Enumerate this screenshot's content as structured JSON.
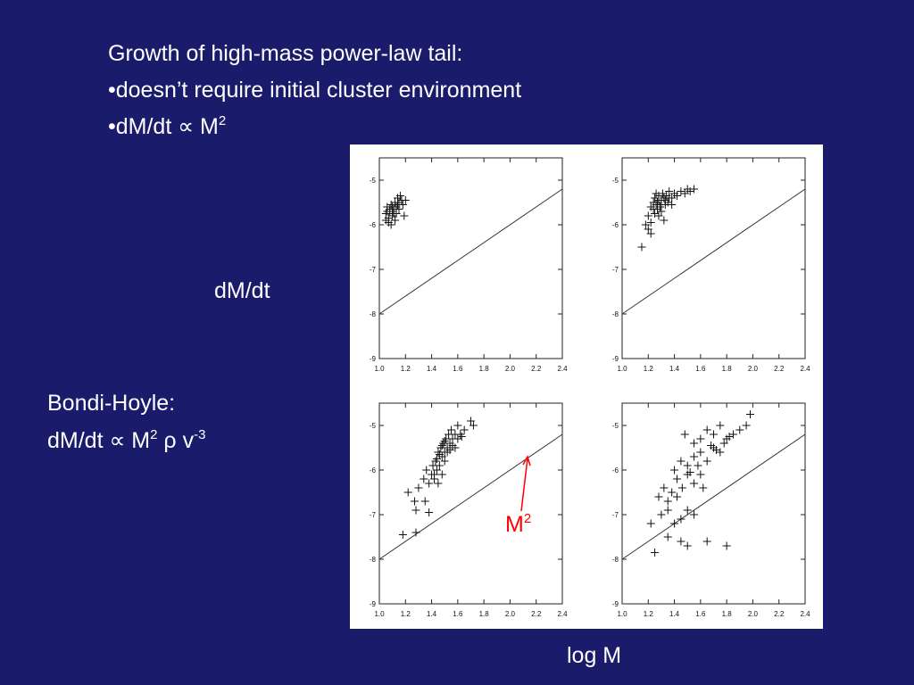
{
  "slide": {
    "heading": "Growth of high-mass power-law tail:",
    "bullets": [
      "•doesn’t require initial cluster environment",
      {
        "text": "•dM/dt ∝ M",
        "sup": "2"
      }
    ],
    "y_axis_label": "dM/dt",
    "x_axis_label": "log M",
    "bondi_hoyle": {
      "title": "Bondi-Hoyle:",
      "formula_parts": [
        "dM/dt ∝ M",
        "2",
        " ρ v",
        "-3"
      ]
    },
    "annotation": {
      "label_base": "M",
      "label_sup": "2",
      "color": "#ff0000"
    }
  },
  "colors": {
    "background": "#1b1b6b",
    "text": "#ffffff",
    "figure_bg": "#ffffff",
    "marker": "#111111"
  },
  "chart_data": [
    {
      "type": "scatter",
      "panel": "top-left",
      "xlim": [
        1.0,
        2.4
      ],
      "ylim": [
        -9,
        -4.5
      ],
      "x_ticks": [
        "1.0",
        "1.2",
        "1.4",
        "1.6",
        "1.8",
        "2.0",
        "2.2",
        "2.4"
      ],
      "y_ticks": [
        "-5",
        "-6",
        "-7",
        "-8",
        "-9"
      ],
      "reference_line": {
        "label": "M²",
        "points": [
          [
            1.0,
            -8.0
          ],
          [
            2.4,
            -5.2
          ]
        ]
      },
      "points": [
        [
          1.05,
          -5.75
        ],
        [
          1.06,
          -5.6
        ],
        [
          1.07,
          -5.85
        ],
        [
          1.08,
          -5.7
        ],
        [
          1.09,
          -5.55
        ],
        [
          1.1,
          -5.8
        ],
        [
          1.11,
          -5.65
        ],
        [
          1.12,
          -5.5
        ],
        [
          1.13,
          -5.6
        ],
        [
          1.14,
          -5.4
        ],
        [
          1.15,
          -5.5
        ],
        [
          1.16,
          -5.35
        ],
        [
          1.17,
          -5.45
        ],
        [
          1.18,
          -5.55
        ],
        [
          1.2,
          -5.45
        ],
        [
          1.07,
          -5.95
        ],
        [
          1.09,
          -6.0
        ],
        [
          1.12,
          -5.9
        ],
        [
          1.06,
          -5.7
        ],
        [
          1.1,
          -5.7
        ],
        [
          1.13,
          -5.75
        ],
        [
          1.19,
          -5.8
        ],
        [
          1.08,
          -5.65
        ],
        [
          1.11,
          -5.75
        ],
        [
          1.15,
          -5.65
        ],
        [
          1.1,
          -5.6
        ],
        [
          1.14,
          -5.55
        ],
        [
          1.05,
          -5.9
        ]
      ]
    },
    {
      "type": "scatter",
      "panel": "top-right",
      "xlim": [
        1.0,
        2.4
      ],
      "ylim": [
        -9,
        -4.5
      ],
      "x_ticks": [
        "1.0",
        "1.2",
        "1.4",
        "1.6",
        "1.8",
        "2.0",
        "2.2",
        "2.4"
      ],
      "y_ticks": [
        "-5",
        "-6",
        "-7",
        "-8",
        "-9"
      ],
      "reference_line": {
        "label": "M²",
        "points": [
          [
            1.0,
            -8.0
          ],
          [
            2.4,
            -5.2
          ]
        ]
      },
      "points": [
        [
          1.15,
          -6.5
        ],
        [
          1.18,
          -6.0
        ],
        [
          1.2,
          -6.1
        ],
        [
          1.22,
          -6.2
        ],
        [
          1.2,
          -5.8
        ],
        [
          1.22,
          -5.6
        ],
        [
          1.24,
          -5.5
        ],
        [
          1.25,
          -5.4
        ],
        [
          1.26,
          -5.3
        ],
        [
          1.27,
          -5.5
        ],
        [
          1.28,
          -5.35
        ],
        [
          1.29,
          -5.6
        ],
        [
          1.3,
          -5.45
        ],
        [
          1.31,
          -5.3
        ],
        [
          1.32,
          -5.4
        ],
        [
          1.33,
          -5.55
        ],
        [
          1.34,
          -5.35
        ],
        [
          1.35,
          -5.5
        ],
        [
          1.36,
          -5.25
        ],
        [
          1.38,
          -5.4
        ],
        [
          1.4,
          -5.3
        ],
        [
          1.42,
          -5.35
        ],
        [
          1.45,
          -5.25
        ],
        [
          1.48,
          -5.3
        ],
        [
          1.5,
          -5.2
        ],
        [
          1.52,
          -5.25
        ],
        [
          1.55,
          -5.2
        ],
        [
          1.25,
          -5.75
        ],
        [
          1.28,
          -5.8
        ],
        [
          1.3,
          -5.7
        ],
        [
          1.32,
          -5.9
        ],
        [
          1.24,
          -5.65
        ],
        [
          1.26,
          -5.55
        ],
        [
          1.28,
          -5.45
        ],
        [
          1.3,
          -5.55
        ],
        [
          1.33,
          -5.45
        ],
        [
          1.36,
          -5.4
        ],
        [
          1.38,
          -5.55
        ],
        [
          1.22,
          -5.95
        ],
        [
          1.27,
          -5.65
        ]
      ]
    },
    {
      "type": "scatter",
      "panel": "bottom-left",
      "xlim": [
        1.0,
        2.4
      ],
      "ylim": [
        -9,
        -4.5
      ],
      "x_ticks": [
        "1.0",
        "1.2",
        "1.4",
        "1.6",
        "1.8",
        "2.0",
        "2.2",
        "2.4"
      ],
      "y_ticks": [
        "-5",
        "-6",
        "-7",
        "-8",
        "-9"
      ],
      "reference_line": {
        "label": "M²",
        "points": [
          [
            1.0,
            -8.0
          ],
          [
            2.4,
            -5.2
          ]
        ]
      },
      "points": [
        [
          1.18,
          -7.45
        ],
        [
          1.28,
          -7.4
        ],
        [
          1.22,
          -6.5
        ],
        [
          1.27,
          -6.7
        ],
        [
          1.28,
          -6.9
        ],
        [
          1.35,
          -6.7
        ],
        [
          1.38,
          -6.95
        ],
        [
          1.3,
          -6.4
        ],
        [
          1.34,
          -6.2
        ],
        [
          1.36,
          -6.0
        ],
        [
          1.38,
          -6.3
        ],
        [
          1.4,
          -6.1
        ],
        [
          1.41,
          -5.9
        ],
        [
          1.42,
          -6.2
        ],
        [
          1.43,
          -5.8
        ],
        [
          1.44,
          -6.0
        ],
        [
          1.45,
          -5.6
        ],
        [
          1.46,
          -5.9
        ],
        [
          1.47,
          -5.5
        ],
        [
          1.48,
          -5.7
        ],
        [
          1.49,
          -5.4
        ],
        [
          1.5,
          -5.6
        ],
        [
          1.51,
          -5.3
        ],
        [
          1.52,
          -5.5
        ],
        [
          1.53,
          -5.2
        ],
        [
          1.54,
          -5.4
        ],
        [
          1.55,
          -5.1
        ],
        [
          1.56,
          -5.3
        ],
        [
          1.58,
          -5.2
        ],
        [
          1.6,
          -5.0
        ],
        [
          1.62,
          -5.2
        ],
        [
          1.65,
          -5.1
        ],
        [
          1.7,
          -4.9
        ],
        [
          1.72,
          -5.0
        ],
        [
          1.45,
          -6.3
        ],
        [
          1.48,
          -6.1
        ],
        [
          1.5,
          -5.8
        ],
        [
          1.52,
          -5.6
        ],
        [
          1.54,
          -5.55
        ],
        [
          1.56,
          -5.45
        ],
        [
          1.58,
          -5.5
        ],
        [
          1.46,
          -5.65
        ],
        [
          1.48,
          -5.45
        ],
        [
          1.5,
          -5.35
        ],
        [
          1.42,
          -6.1
        ],
        [
          1.44,
          -5.75
        ],
        [
          1.6,
          -5.3
        ],
        [
          1.63,
          -5.25
        ]
      ]
    },
    {
      "type": "scatter",
      "panel": "bottom-right",
      "xlim": [
        1.0,
        2.4
      ],
      "ylim": [
        -9,
        -4.5
      ],
      "x_ticks": [
        "1.0",
        "1.2",
        "1.4",
        "1.6",
        "1.8",
        "2.0",
        "2.2",
        "2.4"
      ],
      "y_ticks": [
        "-5",
        "-6",
        "-7",
        "-8",
        "-9"
      ],
      "reference_line": {
        "label": "M²",
        "points": [
          [
            1.0,
            -8.0
          ],
          [
            2.4,
            -5.2
          ]
        ]
      },
      "points": [
        [
          1.25,
          -7.85
        ],
        [
          1.35,
          -7.5
        ],
        [
          1.45,
          -7.6
        ],
        [
          1.5,
          -7.7
        ],
        [
          1.65,
          -7.6
        ],
        [
          1.8,
          -7.7
        ],
        [
          1.22,
          -7.2
        ],
        [
          1.3,
          -7.0
        ],
        [
          1.35,
          -6.9
        ],
        [
          1.4,
          -7.2
        ],
        [
          1.45,
          -7.1
        ],
        [
          1.5,
          -6.9
        ],
        [
          1.55,
          -7.0
        ],
        [
          1.28,
          -6.6
        ],
        [
          1.32,
          -6.4
        ],
        [
          1.38,
          -6.5
        ],
        [
          1.42,
          -6.2
        ],
        [
          1.46,
          -6.4
        ],
        [
          1.5,
          -6.1
        ],
        [
          1.55,
          -6.3
        ],
        [
          1.6,
          -6.1
        ],
        [
          1.62,
          -6.4
        ],
        [
          1.4,
          -6.0
        ],
        [
          1.45,
          -5.8
        ],
        [
          1.5,
          -5.9
        ],
        [
          1.55,
          -5.7
        ],
        [
          1.6,
          -5.6
        ],
        [
          1.65,
          -5.8
        ],
        [
          1.7,
          -5.5
        ],
        [
          1.75,
          -5.6
        ],
        [
          1.8,
          -5.3
        ],
        [
          1.85,
          -5.2
        ],
        [
          1.9,
          -5.1
        ],
        [
          1.95,
          -5.0
        ],
        [
          1.98,
          -4.75
        ],
        [
          1.6,
          -5.3
        ],
        [
          1.65,
          -5.1
        ],
        [
          1.7,
          -5.2
        ],
        [
          1.75,
          -5.0
        ],
        [
          1.55,
          -5.4
        ],
        [
          1.48,
          -5.2
        ],
        [
          1.68,
          -5.45
        ],
        [
          1.72,
          -5.55
        ],
        [
          1.78,
          -5.4
        ],
        [
          1.82,
          -5.25
        ],
        [
          1.52,
          -6.05
        ],
        [
          1.58,
          -5.9
        ],
        [
          1.35,
          -6.7
        ],
        [
          1.42,
          -6.6
        ]
      ]
    }
  ]
}
